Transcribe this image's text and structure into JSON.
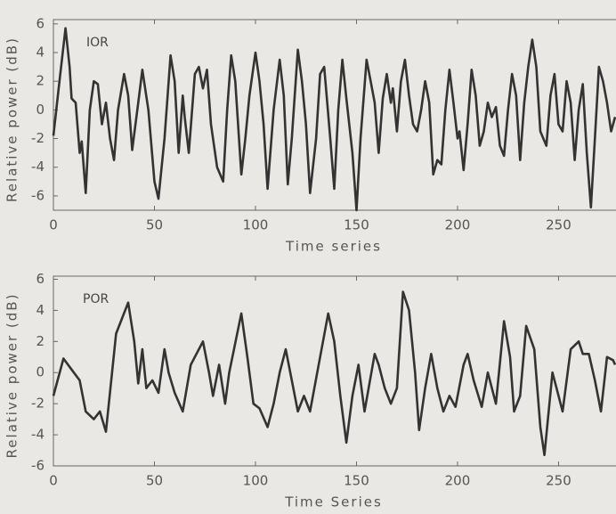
{
  "chart_data": [
    {
      "type": "line",
      "annotation": "IOR",
      "xlabel": "Time series",
      "ylabel": "Relative power (dB)",
      "color": "#333333",
      "x": [
        0,
        3,
        6,
        8,
        9,
        11,
        13,
        14,
        16,
        18,
        20,
        22,
        24,
        26,
        28,
        30,
        32,
        35,
        37,
        39,
        42,
        44,
        47,
        50,
        52,
        55,
        58,
        60,
        62,
        64,
        65,
        67,
        70,
        72,
        74,
        76,
        78,
        81,
        84,
        86,
        88,
        90,
        93,
        95,
        97,
        100,
        102,
        104,
        106,
        109,
        112,
        114,
        116,
        118,
        121,
        123,
        125,
        127,
        130,
        132,
        134,
        137,
        139,
        141,
        143,
        145,
        148,
        150,
        152,
        155,
        157,
        159,
        161,
        163,
        165,
        167,
        168,
        170,
        172,
        174,
        176,
        178,
        180,
        182,
        184,
        186,
        188,
        190,
        192,
        194,
        196,
        198,
        200,
        201,
        203,
        205,
        207,
        209,
        211,
        213,
        215,
        217,
        219,
        221,
        223,
        225,
        227,
        229,
        231,
        233,
        235,
        237,
        239,
        241,
        244,
        246,
        248,
        250,
        252,
        254,
        256,
        258,
        260,
        262,
        264,
        266,
        268,
        270,
        272,
        274,
        276,
        278
      ],
      "values": [
        -1.8,
        2,
        5.7,
        3,
        0.8,
        0.5,
        -3,
        -2.2,
        -5.8,
        0,
        2,
        1.8,
        -1,
        0.5,
        -2,
        -3.5,
        0,
        2.5,
        1,
        -2.8,
        0.5,
        2.8,
        0,
        -5,
        -6.2,
        -2,
        3.8,
        2,
        -3,
        1,
        -0.5,
        -3,
        2.5,
        3,
        1.5,
        2.8,
        -1,
        -4,
        -5,
        0,
        3.8,
        2,
        -4.5,
        -2,
        1,
        4,
        2,
        -1,
        -5.5,
        0,
        3.5,
        1,
        -5.2,
        -2,
        4.2,
        2,
        -1,
        -5.8,
        -2,
        2.5,
        3,
        -2,
        -5.5,
        0,
        3.5,
        0.8,
        -3,
        -7,
        -2,
        3.5,
        2,
        0.5,
        -3,
        0.8,
        2.5,
        0.5,
        1.5,
        -1.5,
        2,
        3.5,
        1,
        -1,
        -1.5,
        0,
        2,
        0.5,
        -4.5,
        -3.5,
        -3.8,
        0,
        2.8,
        0.5,
        -2,
        -1.5,
        -4.2,
        -1,
        2.8,
        1,
        -2.5,
        -1.5,
        0.5,
        -0.5,
        0.2,
        -2.5,
        -3.2,
        0,
        2.5,
        1,
        -3.5,
        0.5,
        3,
        4.9,
        3,
        -1.5,
        -2.5,
        1,
        2.5,
        -1,
        -1.5,
        2,
        0.5,
        -3.5,
        0,
        1.8,
        -3,
        -6.8,
        -2,
        3,
        2,
        0.5,
        -1.5,
        -0.5
      ],
      "xlim": [
        0,
        278
      ],
      "ylim": [
        -7,
        6.3
      ],
      "xticks": [
        0,
        50,
        100,
        150,
        200,
        250
      ],
      "yticks": [
        -6,
        -4,
        -2,
        0,
        2,
        4,
        6
      ]
    },
    {
      "type": "line",
      "annotation": "POR",
      "xlabel": "Time Series",
      "ylabel": "Relative power (dB)",
      "color": "#333333",
      "x": [
        0,
        5,
        9,
        13,
        16,
        20,
        23,
        26,
        31,
        34,
        37,
        40,
        42,
        44,
        46,
        49,
        52,
        55,
        57,
        60,
        64,
        68,
        74,
        77,
        79,
        82,
        85,
        87,
        93,
        96,
        99,
        102,
        106,
        109,
        112,
        115,
        118,
        121,
        124,
        127,
        132,
        136,
        139,
        142,
        145,
        148,
        151,
        154,
        159,
        161,
        164,
        167,
        170,
        173,
        176,
        179,
        181,
        184,
        187,
        190,
        193,
        196,
        199,
        203,
        205,
        208,
        212,
        215,
        219,
        223,
        226,
        228,
        231,
        234,
        238,
        241,
        243,
        247,
        249,
        252,
        256,
        260,
        262,
        265,
        268,
        271,
        274,
        277,
        278
      ],
      "values": [
        -1.5,
        0.9,
        0.2,
        -0.5,
        -2.5,
        -3,
        -2.5,
        -3.8,
        2.5,
        3.5,
        4.5,
        2,
        -0.7,
        1.5,
        -1,
        -0.5,
        -1.3,
        1.5,
        0,
        -1.3,
        -2.5,
        0.5,
        2,
        0,
        -1.5,
        0.5,
        -2,
        0,
        3.8,
        1,
        -2,
        -2.3,
        -3.5,
        -2,
        0,
        1.5,
        -0.5,
        -2.5,
        -1.5,
        -2.5,
        1,
        3.8,
        2,
        -1.5,
        -4.5,
        -1.5,
        0.5,
        -2.5,
        1.2,
        0.5,
        -1,
        -2,
        -1,
        5.2,
        4,
        0,
        -3.7,
        -1,
        1.2,
        -1,
        -2.5,
        -1.5,
        -2.2,
        0.5,
        1.2,
        -0.5,
        -2.2,
        0,
        -2,
        3.3,
        1,
        -2.5,
        -1.5,
        3,
        1.5,
        -3.5,
        -5.3,
        0,
        -1,
        -2.5,
        1.5,
        2,
        1.2,
        1.2,
        -0.5,
        -2.5,
        1,
        0.8,
        0.5
      ],
      "xlim": [
        0,
        278
      ],
      "ylim": [
        -6,
        6.2
      ],
      "xticks": [
        0,
        50,
        100,
        150,
        200,
        250
      ],
      "yticks": [
        -6,
        -4,
        -2,
        0,
        2,
        4,
        6
      ]
    }
  ]
}
